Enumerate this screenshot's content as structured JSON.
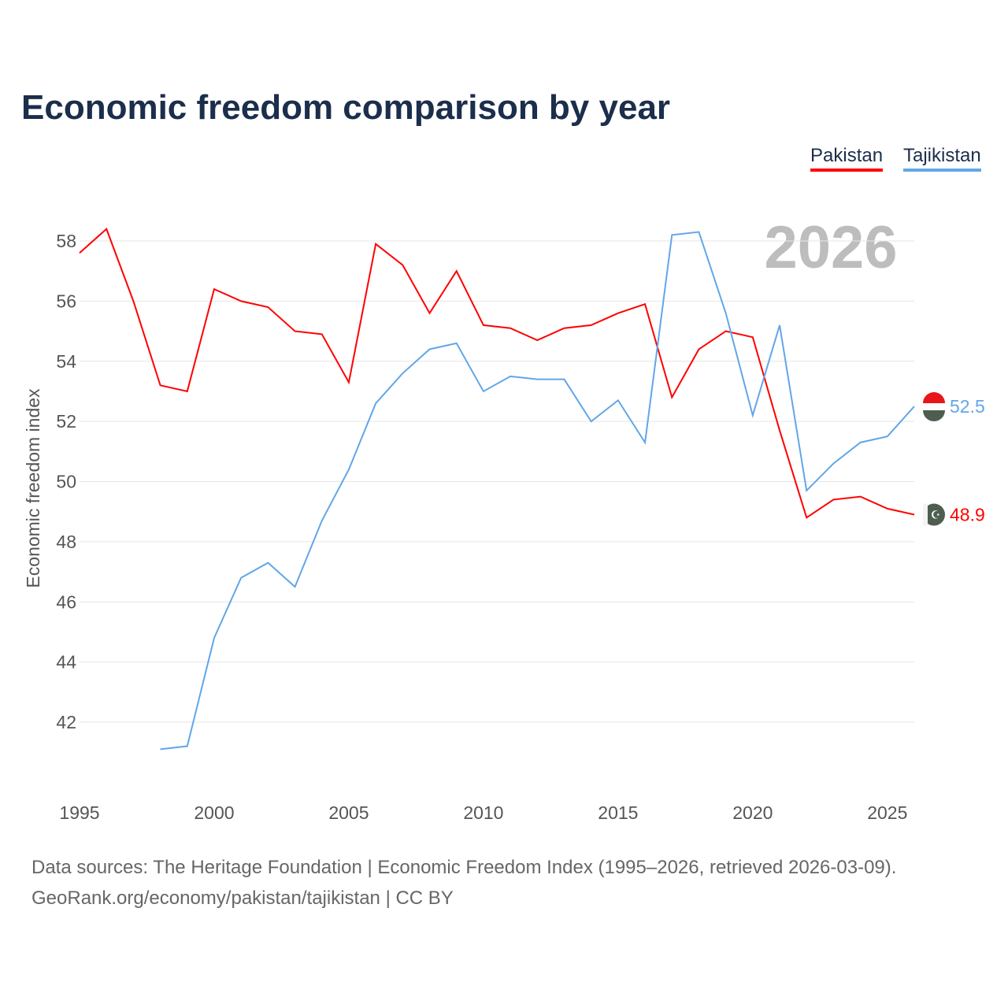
{
  "title": "Economic freedom comparison by year",
  "legend": [
    {
      "label": "Pakistan",
      "color": "#ff0000"
    },
    {
      "label": "Tajikistan",
      "color": "#62a6e8"
    }
  ],
  "year_watermark": "2026",
  "footer": {
    "line1": "Data sources: The Heritage Foundation | Economic Freedom Index (1995–2026, retrieved 2026-03-09).",
    "line2": "GeoRank.org/economy/pakistan/tajikistan | CC BY"
  },
  "chart_data": {
    "type": "line",
    "title": "Economic freedom comparison by year",
    "xlabel": "",
    "ylabel": "Economic freedom index",
    "xlim": [
      1995,
      2026
    ],
    "ylim": [
      39.9,
      59
    ],
    "xticks": [
      1995,
      2000,
      2005,
      2010,
      2015,
      2020,
      2025
    ],
    "yticks": [
      42,
      44,
      46,
      48,
      50,
      52,
      54,
      56,
      58
    ],
    "grid": true,
    "legend_position": "top-right",
    "series": [
      {
        "name": "Pakistan",
        "color": "#ff0000",
        "end_label": "48.9",
        "x": [
          1995,
          1996,
          1997,
          1998,
          1999,
          2000,
          2001,
          2002,
          2003,
          2004,
          2005,
          2006,
          2007,
          2008,
          2009,
          2010,
          2011,
          2012,
          2013,
          2014,
          2015,
          2016,
          2017,
          2018,
          2019,
          2020,
          2021,
          2022,
          2023,
          2024,
          2025,
          2026
        ],
        "y": [
          57.6,
          58.4,
          56.0,
          53.2,
          53.0,
          56.4,
          56.0,
          55.8,
          55.0,
          54.9,
          53.3,
          57.9,
          57.2,
          55.6,
          57.0,
          55.2,
          55.1,
          54.7,
          55.1,
          55.2,
          55.6,
          55.9,
          52.8,
          54.4,
          55.0,
          54.8,
          51.7,
          48.8,
          49.4,
          49.5,
          49.1,
          48.9
        ]
      },
      {
        "name": "Tajikistan",
        "color": "#62a6e8",
        "end_label": "52.5",
        "x": [
          1998,
          1999,
          2000,
          2001,
          2002,
          2003,
          2004,
          2005,
          2006,
          2007,
          2008,
          2009,
          2010,
          2011,
          2012,
          2013,
          2014,
          2015,
          2016,
          2017,
          2018,
          2019,
          2020,
          2021,
          2022,
          2023,
          2024,
          2025,
          2026
        ],
        "y": [
          41.1,
          41.2,
          44.8,
          46.8,
          47.3,
          46.5,
          48.7,
          50.4,
          52.6,
          53.6,
          54.4,
          54.6,
          53.0,
          53.5,
          53.4,
          53.4,
          52.0,
          52.7,
          51.3,
          58.2,
          58.3,
          55.6,
          52.2,
          55.2,
          49.7,
          50.6,
          51.3,
          51.5,
          52.5
        ]
      }
    ]
  }
}
